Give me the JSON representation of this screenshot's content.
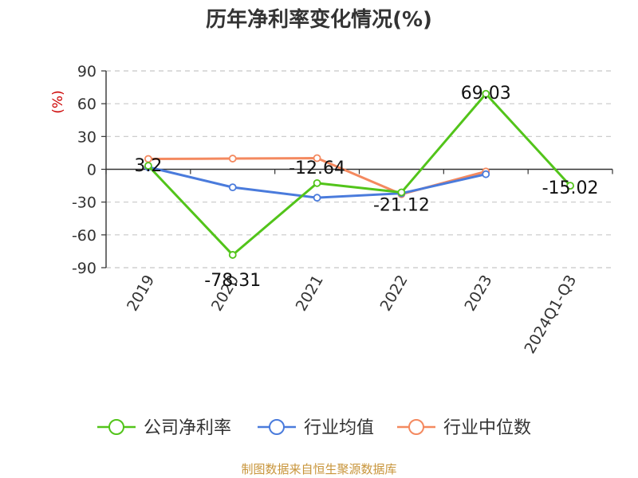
{
  "chart_data": {
    "type": "line",
    "title": "历年净利率变化情况(%)",
    "ylabel": "(%)",
    "ylim": [
      -90,
      90
    ],
    "yticks": [
      90,
      60,
      30,
      0,
      -30,
      -60,
      -90
    ],
    "categories": [
      "2019",
      "2020",
      "2021",
      "2022",
      "2023",
      "2024Q1-Q3"
    ],
    "grid": true,
    "legend_position": "bottom",
    "series": [
      {
        "name": "公司净利率",
        "color": "#52c41a",
        "values": [
          3.2,
          -78.31,
          -12.64,
          -21.12,
          69.03,
          -15.02
        ],
        "labels": [
          "3.2",
          "-78.31",
          "-12.64",
          "-21.12",
          "69.03",
          "-15.02"
        ]
      },
      {
        "name": "行业均值",
        "color": "#4a7bdc",
        "values": [
          2.0,
          -16.5,
          -26.0,
          -22.0,
          -4.5,
          null
        ]
      },
      {
        "name": "行业中位数",
        "color": "#f4895f",
        "values": [
          9.5,
          9.8,
          10.2,
          -22.8,
          -2.0,
          null
        ]
      }
    ]
  },
  "source": {
    "text": "制图数据来自恒生聚源数据库",
    "color": "#c8953b"
  },
  "ylabel_color": "#cc0000"
}
